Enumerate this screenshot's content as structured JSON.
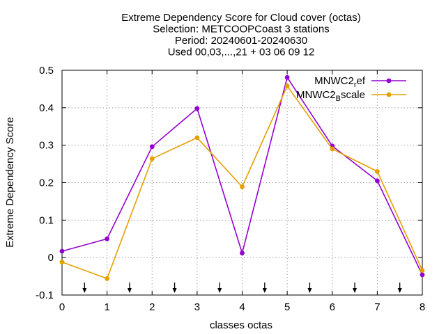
{
  "chart_data": {
    "type": "line",
    "title_lines": [
      "Extreme Dependency Score  for Cloud cover (octas)",
      "Selection: METCOOPCoast       3 stations",
      "Period: 20240601-20240630",
      "Used 00,03,...,21 + 03 06 09 12"
    ],
    "xlabel": "classes octas",
    "ylabel": "Extreme Dependency Score",
    "xlim": [
      0,
      8
    ],
    "ylim": [
      -0.1,
      0.5
    ],
    "xticks": [
      "0",
      "1",
      "2",
      "3",
      "4",
      "5",
      "6",
      "7",
      "8"
    ],
    "yticks": [
      "-0.1",
      "0",
      "0.1",
      "0.2",
      "0.3",
      "0.4",
      "0.5"
    ],
    "grid": true,
    "legend_position": "top-right",
    "arrow_x": [
      0.5,
      1.5,
      2.5,
      3.5,
      4.5,
      5.5,
      6.5,
      7.5
    ],
    "x": [
      0,
      1,
      2,
      3,
      4,
      5,
      6,
      7,
      8
    ],
    "series": [
      {
        "name_main": "MNWC2",
        "name_sub": "r",
        "name_rest": "ef",
        "color": "#9400d3",
        "values": [
          0.017,
          0.05,
          0.296,
          0.398,
          0.012,
          0.481,
          0.298,
          0.205,
          -0.046
        ]
      },
      {
        "name_main": "MNWC2",
        "name_sub": "B",
        "name_rest": "scale",
        "color": "#e69f00",
        "values": [
          -0.012,
          -0.056,
          0.264,
          0.32,
          0.189,
          0.458,
          0.29,
          0.23,
          -0.034
        ]
      }
    ]
  }
}
